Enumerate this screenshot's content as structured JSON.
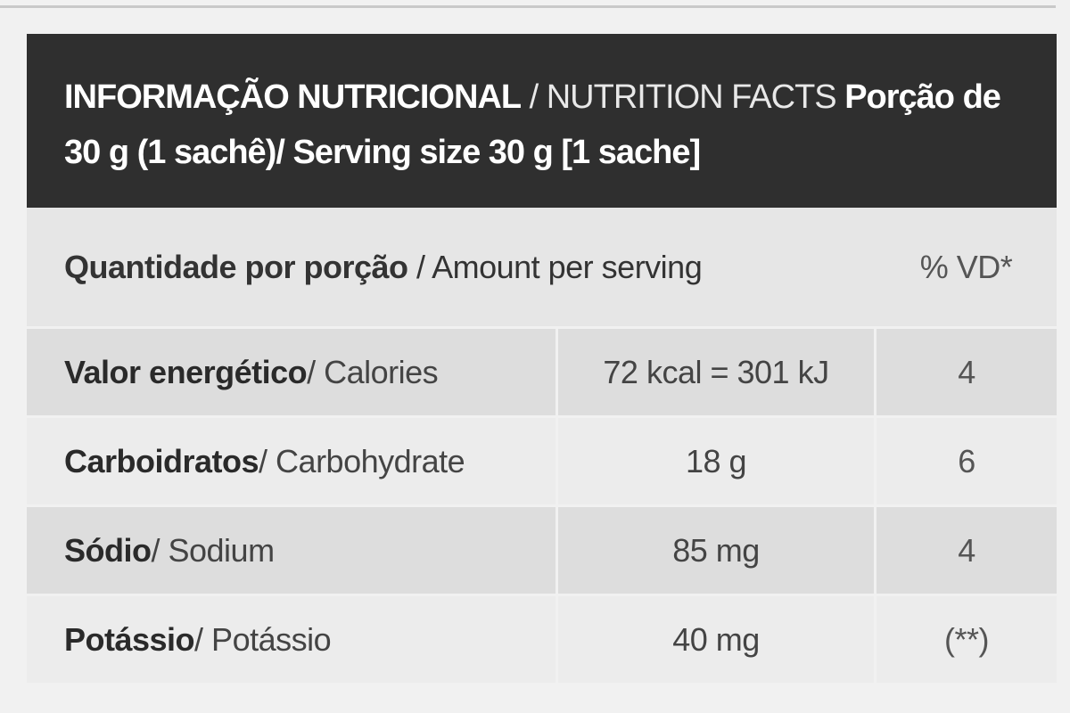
{
  "header": {
    "title_pt": "INFORMAÇÃO NUTRICIONAL",
    "title_en": " / NUTRITION FACTS ",
    "serving_pt": "Porção de 30 g (1 sachê)",
    "serving_en": "/ Serving size 30 g [1 sache]"
  },
  "subheader": {
    "label_pt": "Quantidade por porção",
    "label_en": " / Amount per serving",
    "vd_label": "% VD*"
  },
  "rows": [
    {
      "name_pt": "Valor energético",
      "name_en": " / Calories",
      "amount": "72 kcal = 301 kJ",
      "vd": "4"
    },
    {
      "name_pt": "Carboidratos",
      "name_en": " / Carbohydrate",
      "amount": "18 g",
      "vd": "6"
    },
    {
      "name_pt": "Sódio",
      "name_en": " / Sodium",
      "amount": "85 mg",
      "vd": "4"
    },
    {
      "name_pt": "Potássio",
      "name_en": " / Potássio",
      "amount": "40 mg",
      "vd": "(**)"
    }
  ],
  "colors": {
    "header_bg": "#2f2f2f",
    "row_light": "#ececec",
    "row_dark": "#dddddd",
    "page_bg": "#f1f1f1"
  }
}
